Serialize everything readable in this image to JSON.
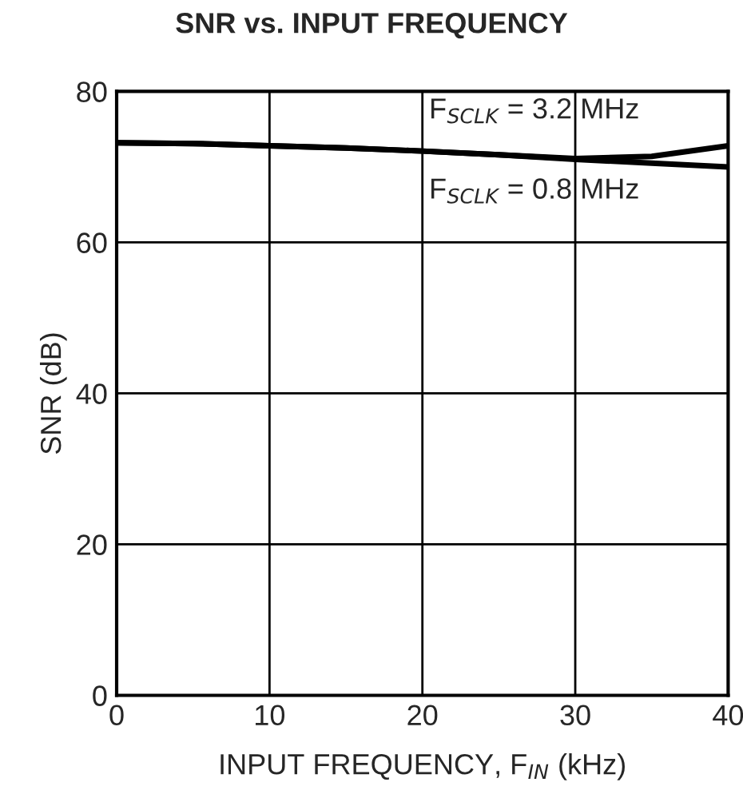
{
  "chart_data": {
    "type": "line",
    "title": "SNR vs. INPUT FREQUENCY",
    "xlabel": "INPUT FREQUENCY, F$_{IN}$ (kHz)",
    "ylabel": "SNR (dB)",
    "x": [
      0,
      5,
      10,
      15,
      20,
      25,
      30,
      35,
      40
    ],
    "series": [
      {
        "name": "F$_{SCLK}$ = 3.2 MHz",
        "color": "#000000",
        "values": [
          73.2,
          73.1,
          72.8,
          72.5,
          72.1,
          71.6,
          71.1,
          71.4,
          72.8
        ]
      },
      {
        "name": "F$_{SCLK}$ = 0.8 MHz",
        "color": "#000000",
        "values": [
          73.2,
          73.1,
          72.8,
          72.5,
          72.1,
          71.6,
          71.0,
          70.5,
          70.0
        ]
      }
    ],
    "xlim": [
      0,
      40
    ],
    "xticks": [
      0,
      10,
      20,
      30,
      40
    ],
    "ylim": [
      0,
      80
    ],
    "yticks": [
      0,
      20,
      40,
      60,
      80
    ],
    "grid": true,
    "line_style": "solid",
    "marker": "none"
  }
}
